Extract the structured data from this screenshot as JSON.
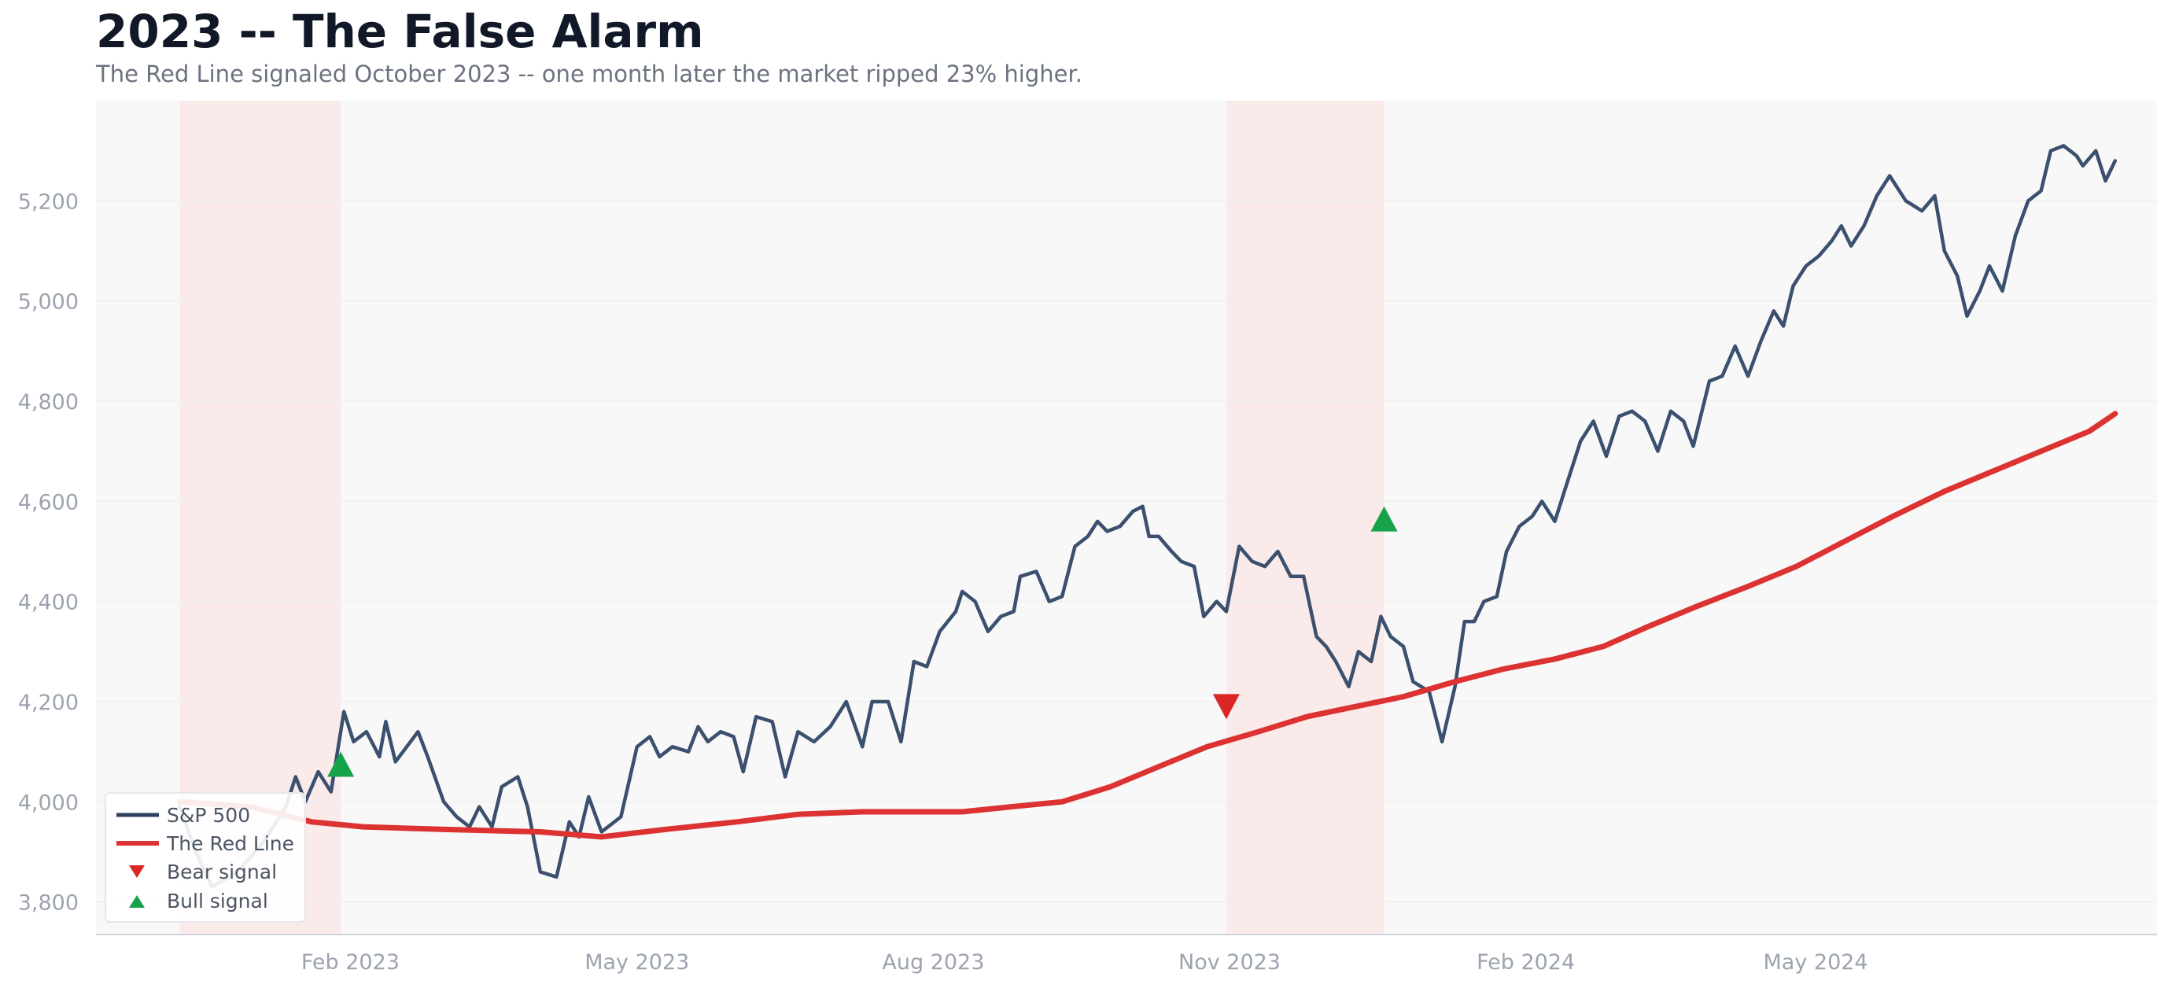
{
  "header": {
    "title": "2023 -- The False Alarm",
    "subtitle": "The Red Line signaled October 2023 -- one month later the market ripped 23% higher."
  },
  "colors": {
    "sp500": "#3b4f6e",
    "red_line": "#dc3232",
    "bear": "#dc2626",
    "bull": "#16a34a",
    "shade": "#fbeaea",
    "plot_bg": "#f8f8f8",
    "grid": "#efefef",
    "tick_text": "#9ca3af"
  },
  "chart_data": {
    "type": "line",
    "title": "2023 -- The False Alarm",
    "subtitle": "The Red Line signaled October 2023 -- one month later the market ripped 23% higher.",
    "xlabel": "",
    "ylabel": "",
    "xlim": [
      "2022-11-14",
      "2024-08-15"
    ],
    "ylim": [
      3735,
      5400
    ],
    "x_ticks": [
      {
        "date": "2023-02-01",
        "label": "Feb 2023"
      },
      {
        "date": "2023-05-01",
        "label": "May 2023"
      },
      {
        "date": "2023-08-01",
        "label": "Aug 2023"
      },
      {
        "date": "2023-11-01",
        "label": "Nov 2023"
      },
      {
        "date": "2024-02-01",
        "label": "Feb 2024"
      },
      {
        "date": "2024-05-01",
        "label": "May 2024"
      }
    ],
    "y_ticks": [
      {
        "value": 3800,
        "label": "3,800"
      },
      {
        "value": 4000,
        "label": "4,000"
      },
      {
        "value": 4200,
        "label": "4,200"
      },
      {
        "value": 4400,
        "label": "4,400"
      },
      {
        "value": 4600,
        "label": "4,600"
      },
      {
        "value": 4800,
        "label": "4,800"
      },
      {
        "value": 5000,
        "label": "5,000"
      },
      {
        "value": 5200,
        "label": "5,200"
      }
    ],
    "grid": "horizontal",
    "legend_position": "bottom-left",
    "shaded_regions": [
      {
        "start": "2022-12-10",
        "end": "2023-01-29"
      },
      {
        "start": "2023-10-31",
        "end": "2023-12-19"
      }
    ],
    "series": [
      {
        "name": "S&P 500",
        "kind": "line",
        "points": [
          [
            "2022-12-10",
            3990
          ],
          [
            "2022-12-15",
            3900
          ],
          [
            "2022-12-20",
            3830
          ],
          [
            "2022-12-28",
            3860
          ],
          [
            "2023-01-05",
            3920
          ],
          [
            "2023-01-12",
            3990
          ],
          [
            "2023-01-15",
            4050
          ],
          [
            "2023-01-18",
            4000
          ],
          [
            "2023-01-22",
            4060
          ],
          [
            "2023-01-26",
            4020
          ],
          [
            "2023-01-30",
            4180
          ],
          [
            "2023-02-02",
            4120
          ],
          [
            "2023-02-06",
            4140
          ],
          [
            "2023-02-10",
            4090
          ],
          [
            "2023-02-12",
            4160
          ],
          [
            "2023-02-15",
            4080
          ],
          [
            "2023-02-22",
            4140
          ],
          [
            "2023-02-25",
            4090
          ],
          [
            "2023-03-02",
            4000
          ],
          [
            "2023-03-06",
            3970
          ],
          [
            "2023-03-10",
            3950
          ],
          [
            "2023-03-13",
            3990
          ],
          [
            "2023-03-17",
            3950
          ],
          [
            "2023-03-20",
            4030
          ],
          [
            "2023-03-25",
            4050
          ],
          [
            "2023-03-28",
            3990
          ],
          [
            "2023-04-01",
            3860
          ],
          [
            "2023-04-06",
            3850
          ],
          [
            "2023-04-10",
            3960
          ],
          [
            "2023-04-13",
            3930
          ],
          [
            "2023-04-16",
            4010
          ],
          [
            "2023-04-20",
            3940
          ],
          [
            "2023-04-26",
            3970
          ],
          [
            "2023-05-01",
            4110
          ],
          [
            "2023-05-05",
            4130
          ],
          [
            "2023-05-08",
            4090
          ],
          [
            "2023-05-12",
            4110
          ],
          [
            "2023-05-17",
            4100
          ],
          [
            "2023-05-20",
            4150
          ],
          [
            "2023-05-23",
            4120
          ],
          [
            "2023-05-27",
            4140
          ],
          [
            "2023-05-31",
            4130
          ],
          [
            "2023-06-03",
            4060
          ],
          [
            "2023-06-07",
            4170
          ],
          [
            "2023-06-12",
            4160
          ],
          [
            "2023-06-16",
            4050
          ],
          [
            "2023-06-20",
            4140
          ],
          [
            "2023-06-25",
            4120
          ],
          [
            "2023-06-30",
            4150
          ],
          [
            "2023-07-05",
            4200
          ],
          [
            "2023-07-10",
            4110
          ],
          [
            "2023-07-13",
            4200
          ],
          [
            "2023-07-18",
            4200
          ],
          [
            "2023-07-22",
            4120
          ],
          [
            "2023-07-26",
            4280
          ],
          [
            "2023-07-30",
            4270
          ],
          [
            "2023-08-03",
            4340
          ],
          [
            "2023-08-08",
            4380
          ],
          [
            "2023-08-10",
            4420
          ],
          [
            "2023-08-14",
            4400
          ],
          [
            "2023-08-18",
            4340
          ],
          [
            "2023-08-22",
            4370
          ],
          [
            "2023-08-26",
            4380
          ],
          [
            "2023-08-28",
            4450
          ],
          [
            "2023-09-02",
            4460
          ],
          [
            "2023-09-06",
            4400
          ],
          [
            "2023-09-10",
            4410
          ],
          [
            "2023-09-14",
            4510
          ],
          [
            "2023-09-18",
            4530
          ],
          [
            "2023-09-21",
            4560
          ],
          [
            "2023-09-24",
            4540
          ],
          [
            "2023-09-28",
            4550
          ],
          [
            "2023-10-02",
            4580
          ],
          [
            "2023-10-05",
            4590
          ],
          [
            "2023-10-07",
            4530
          ],
          [
            "2023-10-10",
            4530
          ],
          [
            "2023-10-14",
            4500
          ],
          [
            "2023-10-17",
            4480
          ],
          [
            "2023-10-21",
            4470
          ],
          [
            "2023-10-24",
            4370
          ],
          [
            "2023-10-28",
            4400
          ],
          [
            "2023-10-31",
            4380
          ],
          [
            "2023-11-04",
            4510
          ],
          [
            "2023-11-08",
            4480
          ],
          [
            "2023-11-12",
            4470
          ],
          [
            "2023-11-16",
            4500
          ],
          [
            "2023-11-20",
            4450
          ],
          [
            "2023-11-24",
            4450
          ],
          [
            "2023-11-28",
            4330
          ],
          [
            "2023-12-01",
            4310
          ],
          [
            "2023-12-04",
            4280
          ],
          [
            "2023-12-08",
            4230
          ],
          [
            "2023-12-11",
            4300
          ],
          [
            "2023-12-15",
            4280
          ],
          [
            "2023-12-18",
            4370
          ],
          [
            "2023-12-21",
            4330
          ],
          [
            "2023-12-25",
            4310
          ],
          [
            "2023-12-28",
            4240
          ],
          [
            "2024-01-02",
            4220
          ],
          [
            "2024-01-06",
            4120
          ],
          [
            "2024-01-10",
            4230
          ],
          [
            "2024-01-13",
            4360
          ],
          [
            "2024-01-16",
            4360
          ],
          [
            "2024-01-19",
            4400
          ],
          [
            "2024-01-23",
            4410
          ],
          [
            "2024-01-26",
            4500
          ],
          [
            "2024-01-30",
            4550
          ],
          [
            "2024-02-03",
            4570
          ],
          [
            "2024-02-06",
            4600
          ],
          [
            "2024-02-10",
            4560
          ],
          [
            "2024-02-14",
            4640
          ],
          [
            "2024-02-18",
            4720
          ],
          [
            "2024-02-22",
            4760
          ],
          [
            "2024-02-26",
            4690
          ],
          [
            "2024-03-01",
            4770
          ],
          [
            "2024-03-05",
            4780
          ],
          [
            "2024-03-09",
            4760
          ],
          [
            "2024-03-13",
            4700
          ],
          [
            "2024-03-17",
            4780
          ],
          [
            "2024-03-21",
            4760
          ],
          [
            "2024-03-24",
            4710
          ],
          [
            "2024-03-29",
            4840
          ],
          [
            "2024-04-02",
            4850
          ],
          [
            "2024-04-06",
            4910
          ],
          [
            "2024-04-10",
            4850
          ],
          [
            "2024-04-14",
            4920
          ],
          [
            "2024-04-18",
            4980
          ],
          [
            "2024-04-21",
            4950
          ],
          [
            "2024-04-24",
            5030
          ],
          [
            "2024-04-28",
            5070
          ],
          [
            "2024-05-02",
            5090
          ],
          [
            "2024-05-06",
            5120
          ],
          [
            "2024-05-09",
            5150
          ],
          [
            "2024-05-12",
            5110
          ],
          [
            "2024-05-16",
            5150
          ],
          [
            "2024-05-20",
            5210
          ],
          [
            "2024-05-24",
            5250
          ],
          [
            "2024-05-29",
            5200
          ],
          [
            "2024-06-03",
            5180
          ],
          [
            "2024-06-07",
            5210
          ],
          [
            "2024-06-10",
            5100
          ],
          [
            "2024-06-14",
            5050
          ],
          [
            "2024-06-17",
            4970
          ],
          [
            "2024-06-21",
            5020
          ],
          [
            "2024-06-24",
            5070
          ],
          [
            "2024-06-28",
            5020
          ],
          [
            "2024-07-02",
            5130
          ],
          [
            "2024-07-06",
            5200
          ],
          [
            "2024-07-10",
            5220
          ],
          [
            "2024-07-13",
            5300
          ],
          [
            "2024-07-17",
            5310
          ],
          [
            "2024-07-21",
            5290
          ],
          [
            "2024-07-23",
            5270
          ],
          [
            "2024-07-27",
            5300
          ],
          [
            "2024-07-30",
            5240
          ],
          [
            "2024-08-02",
            5280
          ]
        ]
      },
      {
        "name": "The Red Line",
        "kind": "line",
        "points": [
          [
            "2022-12-10",
            4000
          ],
          [
            "2023-01-01",
            3990
          ],
          [
            "2023-01-20",
            3960
          ],
          [
            "2023-02-05",
            3950
          ],
          [
            "2023-03-01",
            3945
          ],
          [
            "2023-04-01",
            3940
          ],
          [
            "2023-04-20",
            3930
          ],
          [
            "2023-05-10",
            3945
          ],
          [
            "2023-06-01",
            3960
          ],
          [
            "2023-06-20",
            3975
          ],
          [
            "2023-07-10",
            3980
          ],
          [
            "2023-08-10",
            3980
          ],
          [
            "2023-08-25",
            3990
          ],
          [
            "2023-09-10",
            4000
          ],
          [
            "2023-09-25",
            4030
          ],
          [
            "2023-10-10",
            4070
          ],
          [
            "2023-10-25",
            4110
          ],
          [
            "2023-11-10",
            4140
          ],
          [
            "2023-11-25",
            4170
          ],
          [
            "2023-12-10",
            4190
          ],
          [
            "2023-12-25",
            4210
          ],
          [
            "2024-01-10",
            4240
          ],
          [
            "2024-01-25",
            4265
          ],
          [
            "2024-02-10",
            4285
          ],
          [
            "2024-02-25",
            4310
          ],
          [
            "2024-03-10",
            4350
          ],
          [
            "2024-03-25",
            4390
          ],
          [
            "2024-04-10",
            4430
          ],
          [
            "2024-04-25",
            4470
          ],
          [
            "2024-05-10",
            4520
          ],
          [
            "2024-05-25",
            4570
          ],
          [
            "2024-06-10",
            4620
          ],
          [
            "2024-06-25",
            4660
          ],
          [
            "2024-07-10",
            4700
          ],
          [
            "2024-07-25",
            4740
          ],
          [
            "2024-08-02",
            4775
          ]
        ]
      },
      {
        "name": "Bear signal",
        "kind": "marker",
        "marker": "triangle-down",
        "points": [
          [
            "2023-10-31",
            4190
          ]
        ]
      },
      {
        "name": "Bull signal",
        "kind": "marker",
        "marker": "triangle-up",
        "points": [
          [
            "2023-01-29",
            4075
          ],
          [
            "2023-12-19",
            4565
          ]
        ]
      }
    ]
  }
}
